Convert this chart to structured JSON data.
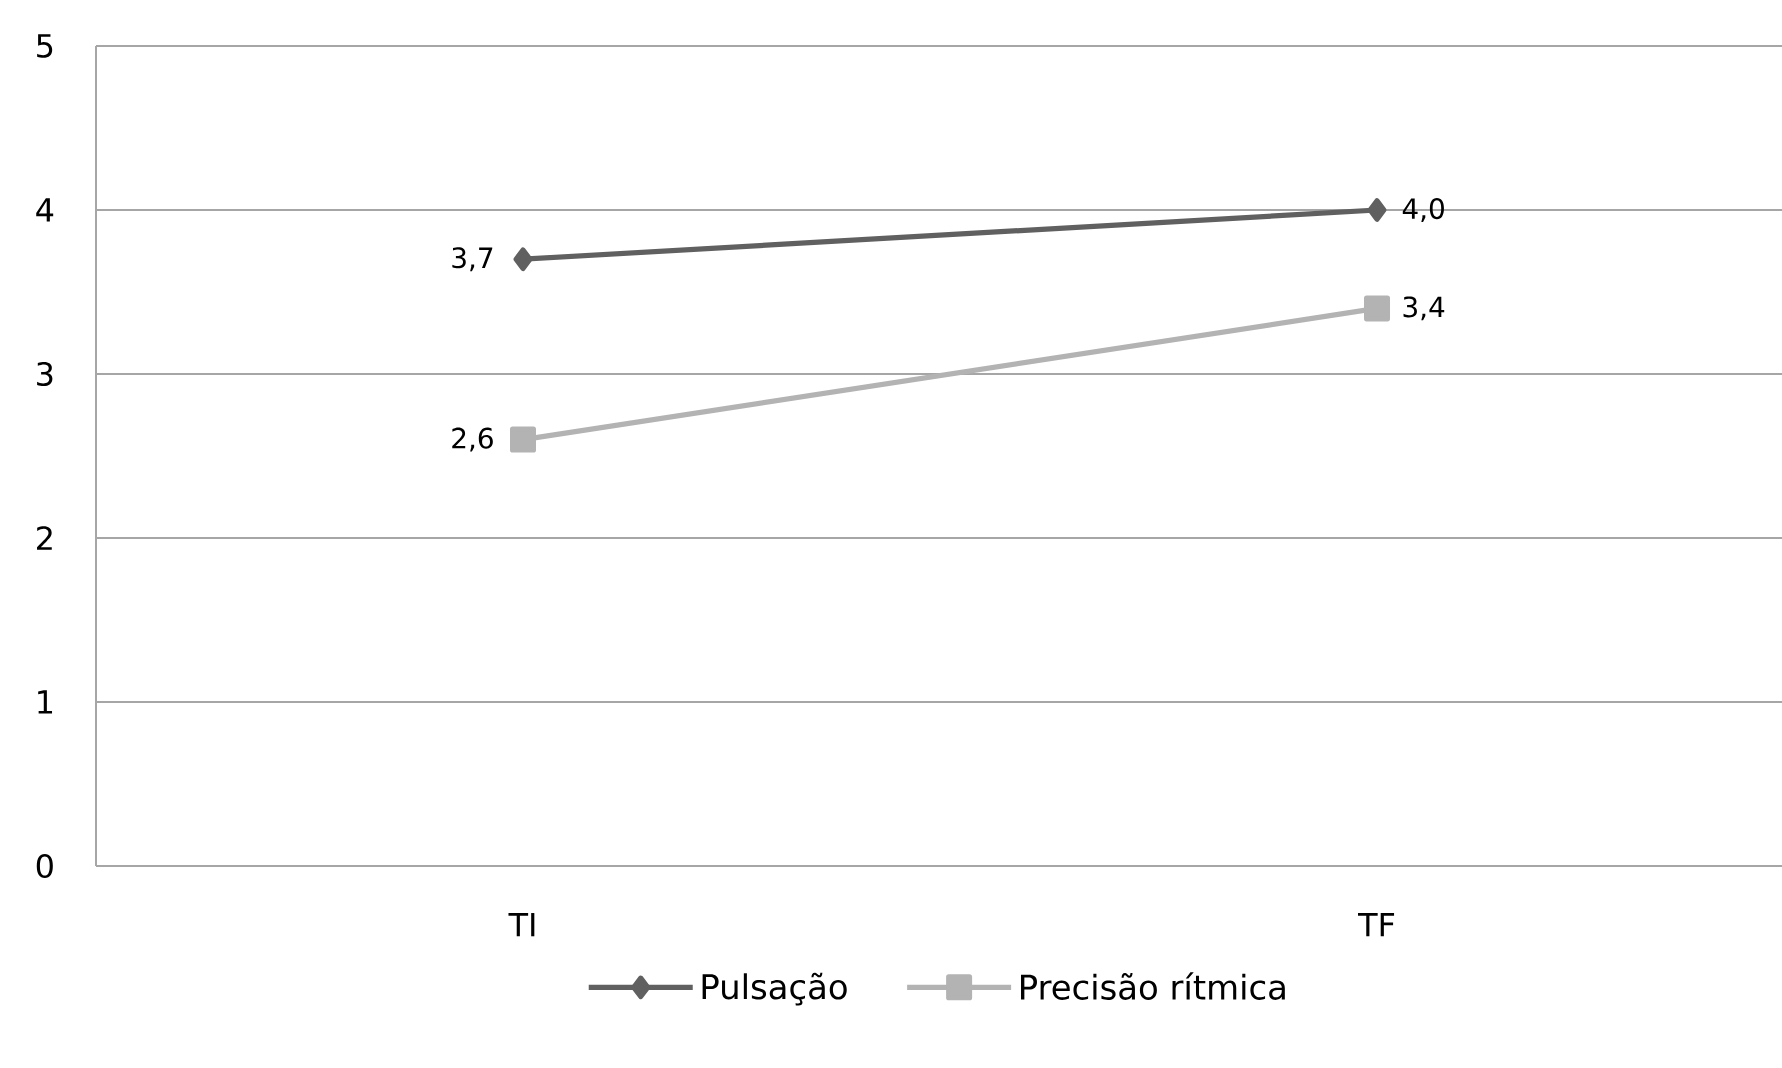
{
  "chart_data": {
    "type": "line",
    "categories": [
      "TI",
      "TF"
    ],
    "series": [
      {
        "name": "Pulsação",
        "color": "#606060",
        "marker": "diamond",
        "values": [
          3.7,
          4.0
        ],
        "value_labels": [
          "3,7",
          "4,0"
        ]
      },
      {
        "name": "Precisão rítmica",
        "color": "#b3b3b3",
        "marker": "square",
        "values": [
          2.6,
          3.4
        ],
        "value_labels": [
          "2,6",
          "3,4"
        ]
      }
    ],
    "ylim": [
      0,
      5
    ],
    "yticks": [
      0,
      1,
      2,
      3,
      4,
      5
    ],
    "grid": "y",
    "legend": "bottom"
  }
}
